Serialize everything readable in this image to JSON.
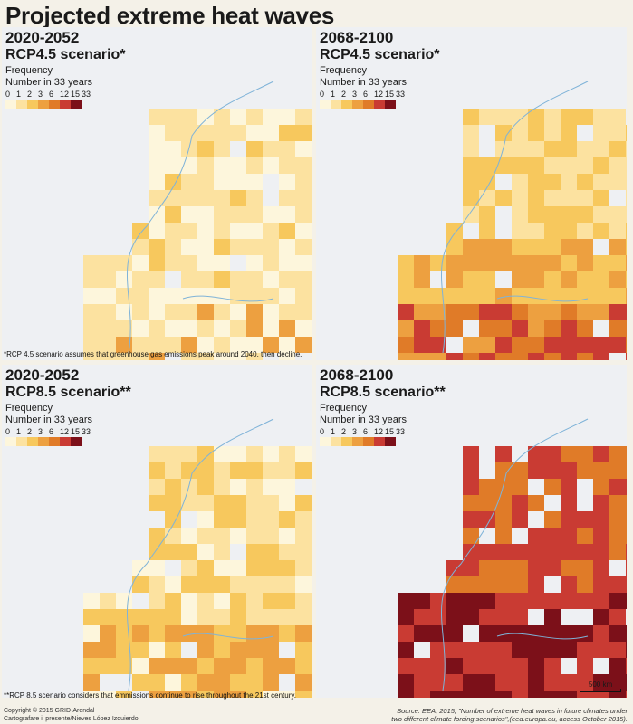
{
  "title": "Projected extreme heat waves",
  "legend": {
    "label_line1": "Frequency",
    "label_line2": "Number in 33 years",
    "ticks": [
      "0",
      "1",
      "2",
      "3",
      "6",
      "12",
      "15",
      "33"
    ],
    "colors": [
      "#fdf6dc",
      "#fce2a0",
      "#f7c85d",
      "#eda040",
      "#e07b28",
      "#c93b33",
      "#7c1019"
    ]
  },
  "panels": [
    {
      "years": "2020-2052",
      "scenario": "RCP4.5 scenario*"
    },
    {
      "years": "2068-2100",
      "scenario": "RCP4.5 scenario*"
    },
    {
      "years": "2020-2052",
      "scenario": "RCP8.5 scenario**"
    },
    {
      "years": "2068-2100",
      "scenario": "RCP8.5 scenario**"
    }
  ],
  "notes": {
    "rcp45": "*RCP 4.5 scenario assumes that greenhouse gas emissions peak around 2040, then decline.",
    "rcp85": "**RCP 8.5 scenario considers that emmissions continue to rise throughout the 21st century."
  },
  "scale_label": "500 km",
  "footer": {
    "copyright": "Copyright © 2015 GRID-Arendal",
    "cartographer": "Cartografare il presente/Nieves López Izquierdo",
    "source_line1": "Source: EEA, 2015, \"Number of extreme heat waves in future climates under",
    "source_line2": "two different climate forcing scenarios\",(eea.europa.eu, access October 2015)."
  }
}
